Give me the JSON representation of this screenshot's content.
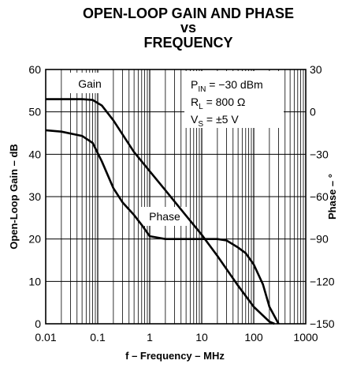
{
  "chart_data": {
    "type": "line",
    "title": [
      "OPEN-LOOP GAIN AND PHASE",
      "vs",
      "FREQUENCY"
    ],
    "xlabel": "f – Frequency – MHz",
    "ylabel_left": "Open-Loop Gain – dB",
    "ylabel_right": "Phase – °",
    "x_scale": "log",
    "xlim": [
      0.01,
      1000
    ],
    "ylim_left": [
      0,
      60
    ],
    "ylim_right": [
      -150,
      30
    ],
    "x_ticks": [
      "0.01",
      "0.1",
      "1",
      "10",
      "100",
      "1000"
    ],
    "y_left_ticks": [
      "0",
      "10",
      "20",
      "30",
      "40",
      "50",
      "60"
    ],
    "y_right_ticks": [
      "30",
      "0",
      "−30",
      "−60",
      "−90",
      "−120",
      "−150"
    ],
    "grid": true,
    "conditions": {
      "pin": {
        "main": "P",
        "sub": "IN",
        "rest": " = −30 dBm"
      },
      "rl": {
        "main": "R",
        "sub": "L",
        "rest": " = 800 Ω"
      },
      "vs": {
        "main": "V",
        "sub": "S",
        "rest": " = ±5 V"
      }
    },
    "series": [
      {
        "name": "Gain",
        "axis": "left",
        "x": [
          0.01,
          0.02,
          0.05,
          0.08,
          0.12,
          0.2,
          0.5,
          1,
          2,
          5,
          10,
          20,
          50,
          100,
          200,
          250
        ],
        "values": [
          53,
          53,
          53,
          52.8,
          51.5,
          48,
          40.5,
          36,
          31.5,
          25.5,
          21,
          16,
          9,
          4,
          0.5,
          0
        ]
      },
      {
        "name": "Phase",
        "axis": "right",
        "x": [
          0.01,
          0.02,
          0.05,
          0.08,
          0.12,
          0.2,
          0.3,
          0.5,
          0.7,
          1,
          2,
          5,
          10,
          20,
          30,
          50,
          70,
          100,
          150,
          200,
          300
        ],
        "values": [
          -13,
          -14,
          -17,
          -22,
          -35,
          -54,
          -64,
          -73,
          -80,
          -88,
          -90,
          -90,
          -90,
          -90,
          -91,
          -96,
          -100,
          -108,
          -122,
          -138,
          -150
        ]
      }
    ]
  }
}
